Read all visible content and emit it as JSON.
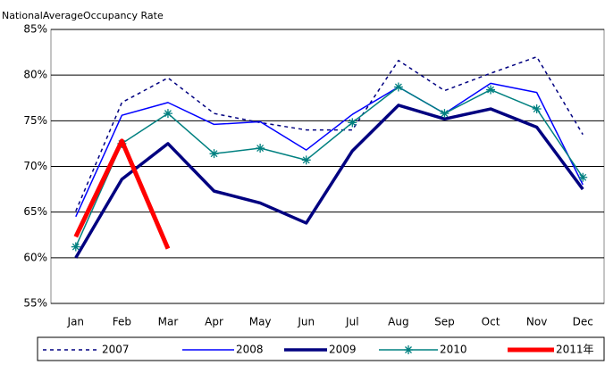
{
  "chart_data": {
    "type": "line",
    "title": "NationalAverageOccupancy Rate",
    "categories": [
      "Jan",
      "Feb",
      "Mar",
      "Apr",
      "May",
      "Jun",
      "Jul",
      "Aug",
      "Sep",
      "Oct",
      "Nov",
      "Dec"
    ],
    "ylim": [
      55,
      85
    ],
    "yticks": [
      {
        "value": 55,
        "label": "55%"
      },
      {
        "value": 60,
        "label": "60%"
      },
      {
        "value": 65,
        "label": "65%"
      },
      {
        "value": 70,
        "label": "70%"
      },
      {
        "value": 75,
        "label": "75%"
      },
      {
        "value": 80,
        "label": "80%"
      },
      {
        "value": 85,
        "label": "85%"
      }
    ],
    "grid": true,
    "legend": "bottom",
    "series": [
      {
        "name": "2007",
        "color": "#000080",
        "linestyle": "dashed",
        "values": [
          65.1,
          77,
          79.7,
          75.8,
          74.8,
          74,
          74,
          81.6,
          78.3,
          80.2,
          82,
          73.5
        ]
      },
      {
        "name": "2008",
        "color": "#0000ff",
        "values": [
          64.5,
          75.6,
          77,
          74.6,
          74.9,
          71.8,
          75.7,
          78.7,
          75.8,
          79.1,
          78.1,
          68
        ]
      },
      {
        "name": "2009",
        "color": "#000080",
        "values": [
          60,
          68.6,
          72.5,
          67.3,
          66,
          63.8,
          71.7,
          76.7,
          75.2,
          76.3,
          74.3,
          67.5
        ]
      },
      {
        "name": "2010",
        "color": "#008080",
        "marker": "star",
        "values": [
          61.2,
          72.5,
          75.8,
          71.4,
          72,
          70.7,
          74.8,
          78.7,
          75.8,
          78.4,
          76.3,
          68.8
        ]
      },
      {
        "name": "2011年",
        "color": "#ff0000",
        "values": [
          62.3,
          72.8,
          61,
          null,
          null,
          null,
          null,
          null,
          null,
          null,
          null,
          null
        ]
      }
    ]
  }
}
